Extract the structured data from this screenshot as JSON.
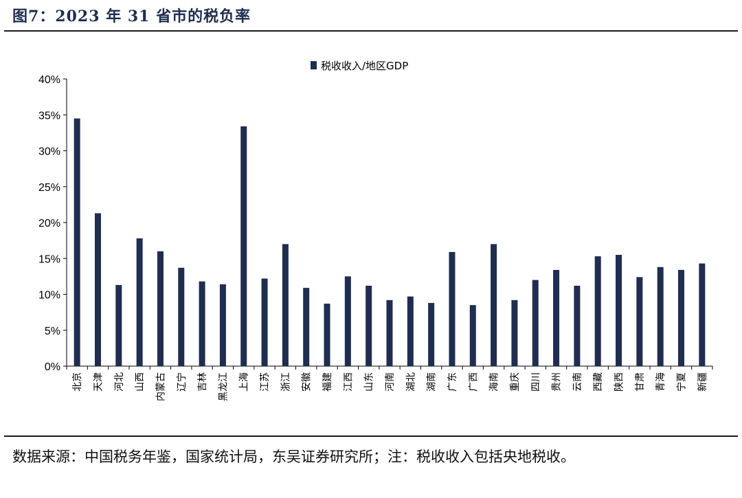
{
  "header": {
    "title": "图7：2023 年 31 省市的税负率"
  },
  "footer": {
    "source": "数据来源：中国税务年鉴，国家统计局，东吴证券研究所；注：税收收入包括央地税收。"
  },
  "colors": {
    "bar": "#1f2d50",
    "axis": "#000000"
  },
  "chart_data": {
    "type": "bar",
    "categories": [
      "北京",
      "天津",
      "河北",
      "山西",
      "内蒙古",
      "辽宁",
      "吉林",
      "黑龙江",
      "上海",
      "江苏",
      "浙江",
      "安徽",
      "福建",
      "江西",
      "山东",
      "河南",
      "湖北",
      "湖南",
      "广东",
      "广西",
      "海南",
      "重庆",
      "四川",
      "贵州",
      "云南",
      "西藏",
      "陕西",
      "甘肃",
      "青海",
      "宁夏",
      "新疆"
    ],
    "series": [
      {
        "name": "税收收入/地区GDP",
        "values": [
          34.5,
          21.3,
          11.3,
          17.8,
          16.0,
          13.7,
          11.8,
          11.4,
          33.4,
          12.2,
          17.0,
          10.9,
          8.7,
          12.5,
          11.2,
          9.2,
          9.7,
          8.8,
          15.9,
          8.5,
          17.0,
          9.2,
          12.0,
          13.4,
          11.2,
          15.3,
          15.5,
          12.4,
          13.8,
          13.4,
          14.3
        ]
      }
    ],
    "yticks": [
      "0%",
      "5%",
      "10%",
      "15%",
      "20%",
      "25%",
      "30%",
      "35%",
      "40%"
    ],
    "ylim": [
      0,
      40
    ],
    "legend_position": "top-center",
    "grid": false
  }
}
